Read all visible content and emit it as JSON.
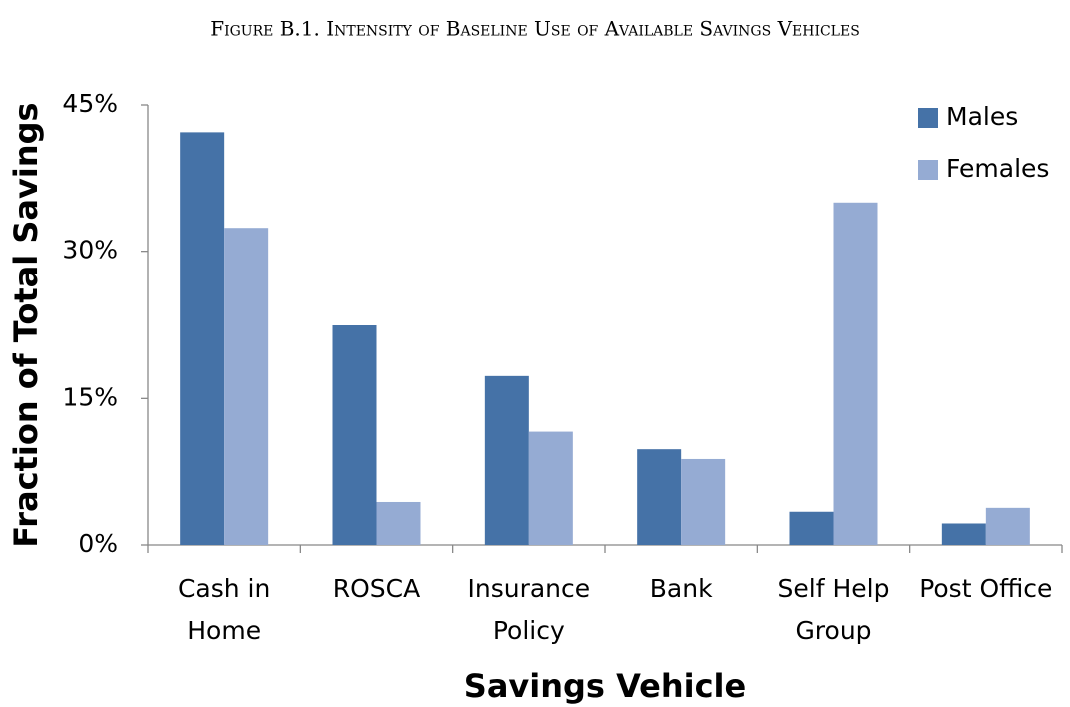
{
  "chart_data": {
    "type": "bar",
    "title": "Figure B.1. Intensity of Baseline Use of Available Savings Vehicles",
    "xlabel": "Savings Vehicle",
    "ylabel": "Fraction of Total Savings",
    "categories": [
      "Cash in\nHome",
      "ROSCA",
      "Insurance\nPolicy",
      "Bank",
      "Self Help\nGroup",
      "Post Office"
    ],
    "series": [
      {
        "name": "Males",
        "color": "#4572a7",
        "values": [
          42.2,
          22.5,
          17.3,
          9.8,
          3.4,
          2.2
        ]
      },
      {
        "name": "Females",
        "color": "#95abd3",
        "values": [
          32.4,
          4.4,
          11.6,
          8.8,
          35.0,
          3.8
        ]
      }
    ],
    "ylim": [
      0,
      45
    ],
    "yticks": [
      {
        "value": 0,
        "label": "0%"
      },
      {
        "value": 15,
        "label": "15%"
      },
      {
        "value": 30,
        "label": "30%"
      },
      {
        "value": 45,
        "label": "45%"
      }
    ],
    "grid": false,
    "legend": "top-right"
  }
}
